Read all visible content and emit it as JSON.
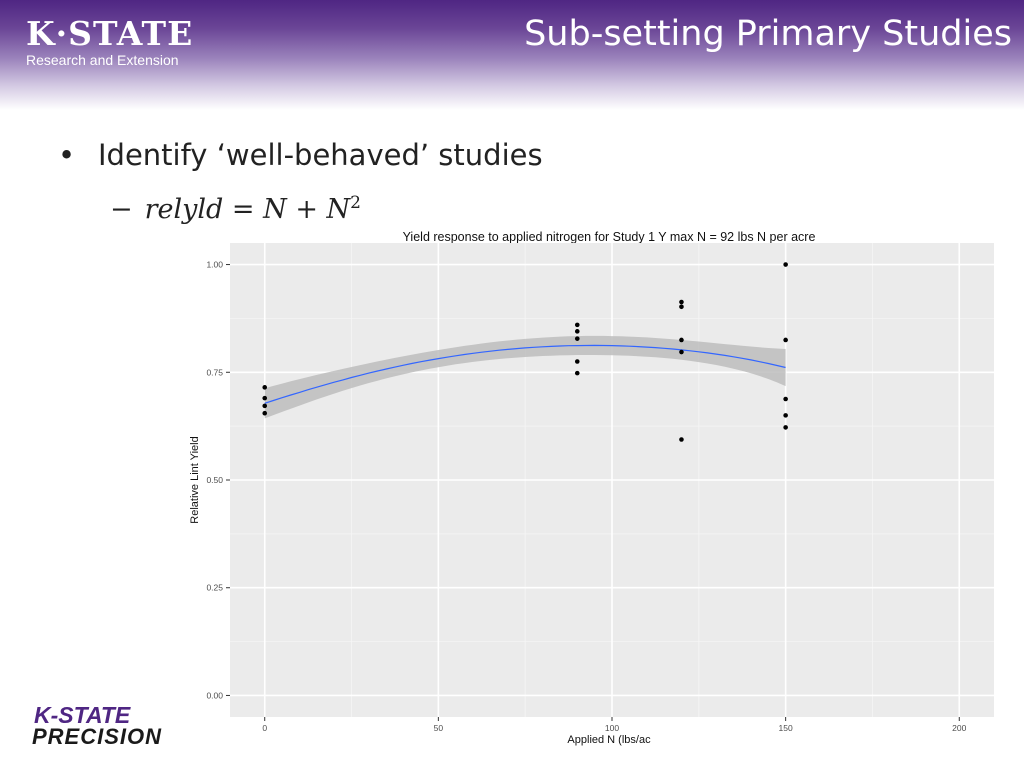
{
  "header": {
    "logo_top": "K·STATE",
    "logo_sub": "Research and Extension",
    "title": "Sub-setting Primary Studies"
  },
  "body": {
    "bullet": "Identify ‘well-behaved’ studies",
    "sub_dash": "−",
    "formula": "relyld = N + N",
    "formula_exp": "2"
  },
  "footer_logo": {
    "top": "K-STATE",
    "bottom": "PRECISION"
  },
  "colors": {
    "accent": "#4f2683",
    "fit_line": "#3366ff",
    "panel": "#ebebeb",
    "ribbon": "#bdbdbd"
  },
  "chart_data": {
    "type": "scatter",
    "title": "Yield response to applied nitrogen for Study 1  Y max N = 92 lbs N per acre",
    "xlabel": "Applied N (lbs/ac",
    "ylabel": "Relative Lint Yield",
    "xlim": [
      -10,
      210
    ],
    "ylim": [
      -0.05,
      1.05
    ],
    "x_ticks": [
      0,
      50,
      100,
      150,
      200
    ],
    "x_tick_labels": [
      "0",
      "50",
      "100",
      "150",
      "200"
    ],
    "y_ticks": [
      0,
      0.25,
      0.5,
      0.75,
      1.0
    ],
    "y_tick_labels": [
      "0.00",
      "0.25",
      "0.50",
      "0.75",
      "1.00"
    ],
    "grid": true,
    "points": [
      {
        "x": 0,
        "y": 0.715
      },
      {
        "x": 0,
        "y": 0.69
      },
      {
        "x": 0,
        "y": 0.672
      },
      {
        "x": 0,
        "y": 0.655
      },
      {
        "x": 90,
        "y": 0.86
      },
      {
        "x": 90,
        "y": 0.845
      },
      {
        "x": 90,
        "y": 0.828
      },
      {
        "x": 90,
        "y": 0.775
      },
      {
        "x": 90,
        "y": 0.748
      },
      {
        "x": 120,
        "y": 0.913
      },
      {
        "x": 120,
        "y": 0.902
      },
      {
        "x": 120,
        "y": 0.825
      },
      {
        "x": 120,
        "y": 0.797
      },
      {
        "x": 120,
        "y": 0.594
      },
      {
        "x": 150,
        "y": 1.0
      },
      {
        "x": 150,
        "y": 0.825
      },
      {
        "x": 150,
        "y": 0.688
      },
      {
        "x": 150,
        "y": 0.65
      },
      {
        "x": 150,
        "y": 0.622
      }
    ],
    "fit": {
      "method": "quadratic",
      "x": [
        0,
        30,
        60,
        90,
        120,
        150
      ],
      "y": [
        0.678,
        0.748,
        0.794,
        0.812,
        0.802,
        0.761
      ],
      "lower": [
        0.643,
        0.725,
        0.774,
        0.79,
        0.779,
        0.718
      ],
      "upper": [
        0.713,
        0.771,
        0.814,
        0.834,
        0.825,
        0.804
      ]
    }
  }
}
